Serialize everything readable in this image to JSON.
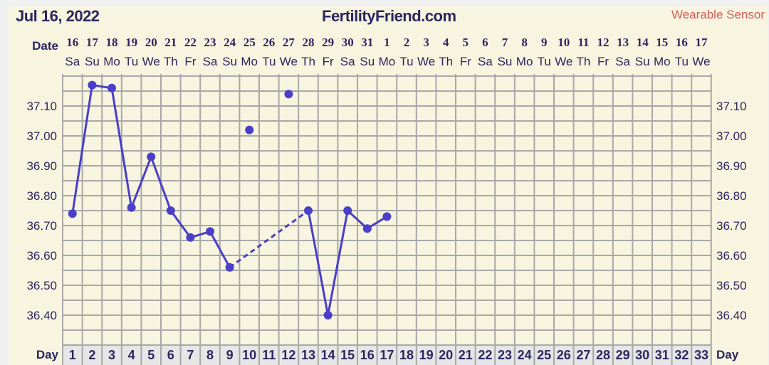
{
  "header": {
    "date": "Jul 16, 2022",
    "site": "FertilityFriend.com",
    "mode": "Wearable Sensor"
  },
  "chart_data": {
    "type": "line",
    "row_labels": {
      "date": "Date",
      "day": "Day"
    },
    "dates": [
      "16",
      "17",
      "18",
      "19",
      "20",
      "21",
      "22",
      "23",
      "24",
      "25",
      "26",
      "27",
      "28",
      "29",
      "30",
      "31",
      "1",
      "2",
      "3",
      "4",
      "5",
      "6",
      "7",
      "8",
      "9",
      "10",
      "11",
      "12",
      "13",
      "14",
      "15",
      "16",
      "17"
    ],
    "weekdays": [
      "Sa",
      "Su",
      "Mo",
      "Tu",
      "We",
      "Th",
      "Fr",
      "Sa",
      "Su",
      "Mo",
      "Tu",
      "We",
      "Th",
      "Fr",
      "Sa",
      "Su",
      "Mo",
      "Tu",
      "We",
      "Th",
      "Fr",
      "Sa",
      "Su",
      "Mo",
      "Tu",
      "We",
      "Th",
      "Fr",
      "Sa",
      "Su",
      "Mo",
      "Tu",
      "We"
    ],
    "days": [
      1,
      2,
      3,
      4,
      5,
      6,
      7,
      8,
      9,
      10,
      11,
      12,
      13,
      14,
      15,
      16,
      17,
      18,
      19,
      20,
      21,
      22,
      23,
      24,
      25,
      26,
      27,
      28,
      29,
      30,
      31,
      32,
      33
    ],
    "y_ticks": [
      "37.10",
      "37.00",
      "36.90",
      "36.80",
      "36.70",
      "36.60",
      "36.50",
      "36.40"
    ],
    "ylim": [
      36.3,
      37.2
    ],
    "grid_step": 0.05,
    "grid": true,
    "color": "#4a3fc8",
    "temperatures": [
      {
        "day": 1,
        "value": 36.74
      },
      {
        "day": 2,
        "value": 37.17
      },
      {
        "day": 3,
        "value": 37.16
      },
      {
        "day": 4,
        "value": 36.76
      },
      {
        "day": 5,
        "value": 36.93
      },
      {
        "day": 6,
        "value": 36.75
      },
      {
        "day": 7,
        "value": 36.66
      },
      {
        "day": 8,
        "value": 36.68
      },
      {
        "day": 9,
        "value": 36.56
      },
      {
        "day": 10,
        "value": 37.02,
        "excluded": true
      },
      {
        "day": 12,
        "value": 37.14,
        "excluded": true
      },
      {
        "day": 13,
        "value": 36.75
      },
      {
        "day": 14,
        "value": 36.4
      },
      {
        "day": 15,
        "value": 36.75
      },
      {
        "day": 16,
        "value": 36.69
      },
      {
        "day": 17,
        "value": 36.73
      }
    ]
  }
}
